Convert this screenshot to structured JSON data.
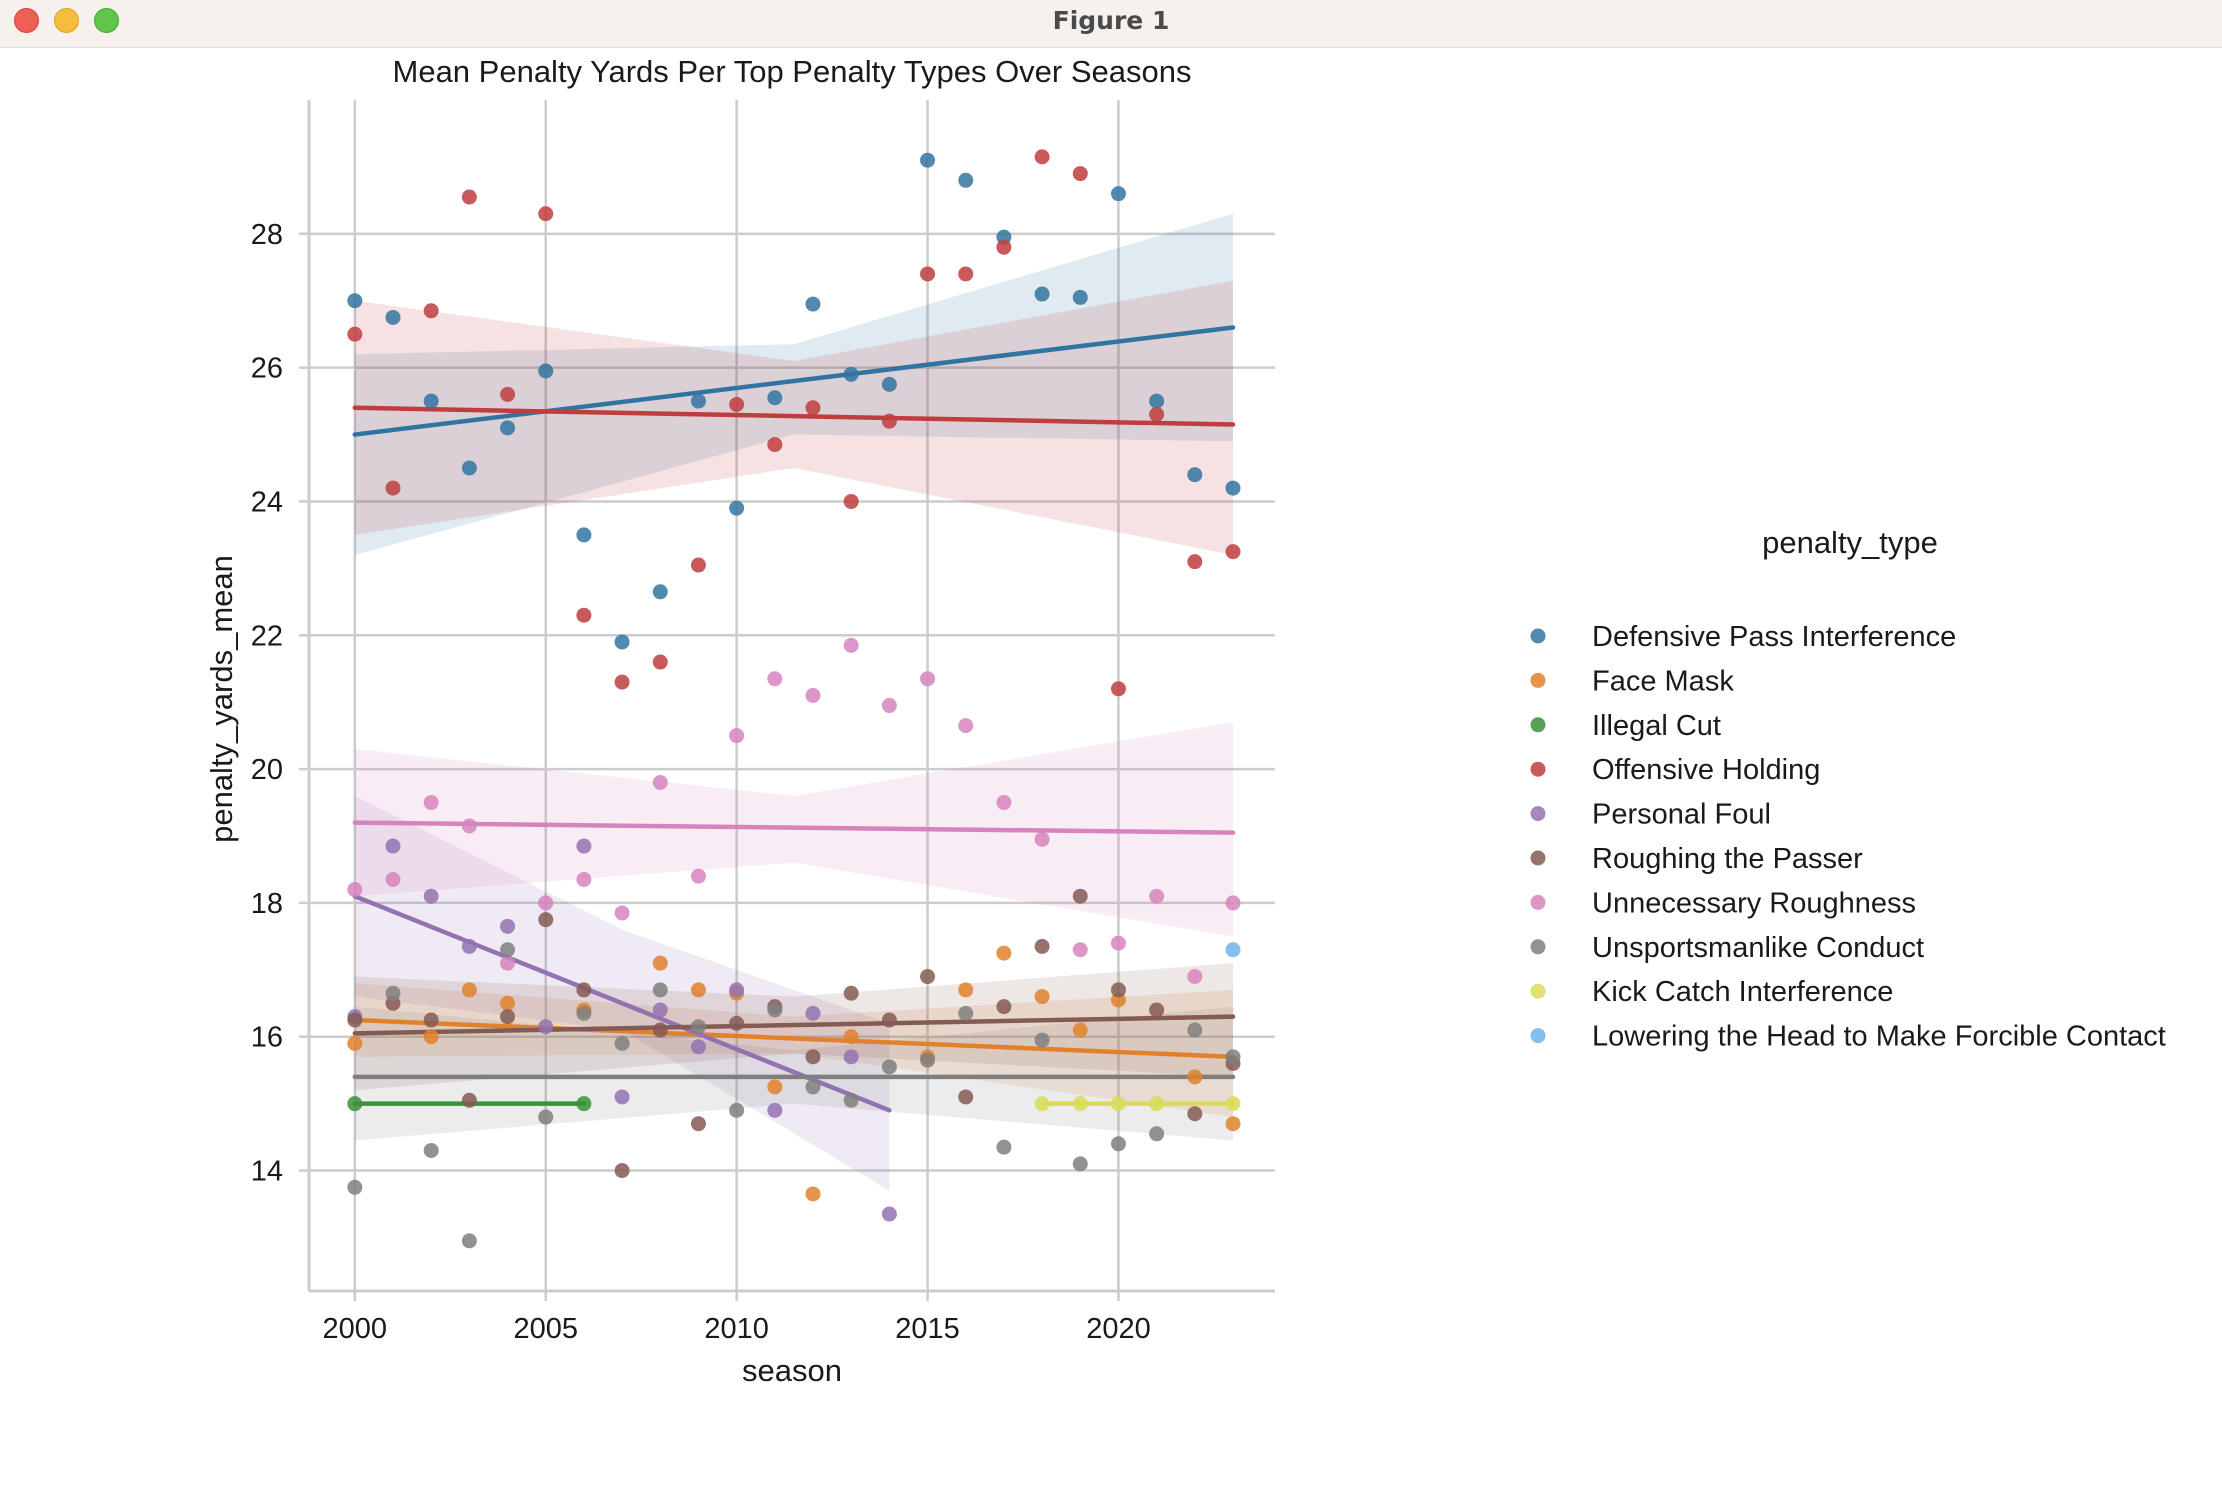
{
  "window": {
    "title": "Figure 1",
    "buttons": [
      "close",
      "minimize",
      "maximize"
    ]
  },
  "chart_data": {
    "type": "scatter",
    "title": "Mean Penalty Yards Per Top Penalty Types Over Seasons",
    "xlabel": "season",
    "ylabel": "penalty_yards_mean",
    "xlim": [
      1998.8,
      2024.1
    ],
    "ylim": [
      12.2,
      30.0
    ],
    "xticks": [
      2000,
      2005,
      2010,
      2015,
      2020
    ],
    "yticks": [
      14,
      16,
      18,
      20,
      22,
      24,
      26,
      28
    ],
    "grid": true,
    "legend_title": "penalty_type",
    "legend_placement": "center-right, outside plot",
    "series": [
      {
        "name": "Defensive Pass Interference",
        "color": "#3274a1",
        "points": [
          [
            2000,
            27.0
          ],
          [
            2001,
            26.75
          ],
          [
            2002,
            25.5
          ],
          [
            2003,
            24.5
          ],
          [
            2004,
            25.1
          ],
          [
            2005,
            25.95
          ],
          [
            2006,
            23.5
          ],
          [
            2007,
            21.9
          ],
          [
            2008,
            22.65
          ],
          [
            2009,
            25.5
          ],
          [
            2010,
            23.9
          ],
          [
            2011,
            25.55
          ],
          [
            2012,
            26.95
          ],
          [
            2013,
            25.9
          ],
          [
            2014,
            25.75
          ],
          [
            2015,
            29.1
          ],
          [
            2016,
            28.8
          ],
          [
            2017,
            27.95
          ],
          [
            2018,
            27.1
          ],
          [
            2019,
            27.05
          ],
          [
            2020,
            28.6
          ],
          [
            2021,
            25.5
          ],
          [
            2022,
            24.4
          ],
          [
            2023,
            24.2
          ]
        ],
        "fit": {
          "start": [
            2000,
            25.0
          ],
          "end": [
            2023,
            26.6
          ]
        },
        "ci": {
          "x": [
            2000,
            2011.5,
            2023
          ],
          "lower": [
            23.2,
            25.0,
            24.9
          ],
          "upper": [
            26.2,
            26.35,
            28.3
          ]
        }
      },
      {
        "name": "Face Mask",
        "color": "#e1812c",
        "points": [
          [
            2000,
            15.9
          ],
          [
            2002,
            16.0
          ],
          [
            2003,
            16.7
          ],
          [
            2004,
            16.5
          ],
          [
            2006,
            16.4
          ],
          [
            2008,
            17.1
          ],
          [
            2009,
            16.7
          ],
          [
            2010,
            16.65
          ],
          [
            2011,
            15.25
          ],
          [
            2012,
            13.65
          ],
          [
            2013,
            16.0
          ],
          [
            2015,
            15.7
          ],
          [
            2016,
            16.7
          ],
          [
            2017,
            17.25
          ],
          [
            2018,
            16.6
          ],
          [
            2019,
            16.1
          ],
          [
            2020,
            16.55
          ],
          [
            2022,
            15.4
          ],
          [
            2023,
            14.7
          ]
        ],
        "fit": {
          "start": [
            2000,
            16.25
          ],
          "end": [
            2023,
            15.7
          ]
        },
        "ci": {
          "x": [
            2000,
            2011.5,
            2023
          ],
          "lower": [
            15.7,
            15.75,
            14.8
          ],
          "upper": [
            16.8,
            16.3,
            16.7
          ]
        }
      },
      {
        "name": "Illegal Cut",
        "color": "#3a923a",
        "points": [
          [
            2000,
            15.0
          ],
          [
            2006,
            15.0
          ]
        ],
        "fit": {
          "start": [
            2000,
            15.0
          ],
          "end": [
            2006,
            15.0
          ]
        }
      },
      {
        "name": "Offensive Holding",
        "color": "#c03d3e",
        "points": [
          [
            2000,
            26.5
          ],
          [
            2001,
            24.2
          ],
          [
            2002,
            26.85
          ],
          [
            2003,
            28.55
          ],
          [
            2004,
            25.6
          ],
          [
            2005,
            28.3
          ],
          [
            2006,
            22.3
          ],
          [
            2007,
            21.3
          ],
          [
            2008,
            21.6
          ],
          [
            2009,
            23.05
          ],
          [
            2010,
            25.45
          ],
          [
            2011,
            24.85
          ],
          [
            2012,
            25.4
          ],
          [
            2013,
            24.0
          ],
          [
            2014,
            25.2
          ],
          [
            2015,
            27.4
          ],
          [
            2016,
            27.4
          ],
          [
            2017,
            27.8
          ],
          [
            2018,
            29.15
          ],
          [
            2019,
            28.9
          ],
          [
            2020,
            21.2
          ],
          [
            2021,
            25.3
          ],
          [
            2022,
            23.1
          ],
          [
            2023,
            23.25
          ]
        ],
        "fit": {
          "start": [
            2000,
            25.4
          ],
          "end": [
            2023,
            25.15
          ]
        },
        "ci": {
          "x": [
            2000,
            2011.5,
            2023
          ],
          "lower": [
            23.5,
            24.5,
            23.2
          ],
          "upper": [
            27.0,
            26.1,
            27.3
          ]
        }
      },
      {
        "name": "Personal Foul",
        "color": "#9372b2",
        "points": [
          [
            2000,
            16.3
          ],
          [
            2001,
            18.85
          ],
          [
            2002,
            18.1
          ],
          [
            2003,
            17.35
          ],
          [
            2004,
            17.65
          ],
          [
            2005,
            16.15
          ],
          [
            2006,
            18.85
          ],
          [
            2007,
            15.1
          ],
          [
            2008,
            16.4
          ],
          [
            2009,
            15.85
          ],
          [
            2010,
            16.7
          ],
          [
            2011,
            14.9
          ],
          [
            2012,
            16.35
          ],
          [
            2013,
            15.7
          ],
          [
            2014,
            13.35
          ]
        ],
        "fit": {
          "start": [
            2000,
            18.1
          ],
          "end": [
            2014,
            14.9
          ]
        },
        "ci": {
          "x": [
            2000,
            2007,
            2014
          ],
          "lower": [
            16.6,
            16.1,
            13.7
          ],
          "upper": [
            19.6,
            17.6,
            16.2
          ]
        }
      },
      {
        "name": "Roughing the Passer",
        "color": "#845b53",
        "points": [
          [
            2000,
            16.25
          ],
          [
            2001,
            16.5
          ],
          [
            2002,
            16.25
          ],
          [
            2003,
            15.05
          ],
          [
            2004,
            16.3
          ],
          [
            2005,
            17.75
          ],
          [
            2006,
            16.7
          ],
          [
            2007,
            14.0
          ],
          [
            2008,
            16.1
          ],
          [
            2009,
            14.7
          ],
          [
            2010,
            16.2
          ],
          [
            2011,
            16.45
          ],
          [
            2012,
            15.7
          ],
          [
            2013,
            16.65
          ],
          [
            2014,
            16.25
          ],
          [
            2015,
            16.9
          ],
          [
            2016,
            15.1
          ],
          [
            2017,
            16.45
          ],
          [
            2018,
            17.35
          ],
          [
            2019,
            18.1
          ],
          [
            2020,
            16.7
          ],
          [
            2021,
            16.4
          ],
          [
            2022,
            14.85
          ],
          [
            2023,
            15.6
          ]
        ],
        "fit": {
          "start": [
            2000,
            16.05
          ],
          "end": [
            2023,
            16.3
          ]
        },
        "ci": {
          "x": [
            2000,
            2011.5,
            2023
          ],
          "lower": [
            15.2,
            15.75,
            15.4
          ],
          "upper": [
            16.9,
            16.6,
            17.1
          ]
        }
      },
      {
        "name": "Unnecessary Roughness",
        "color": "#d684bd",
        "points": [
          [
            2000,
            18.2
          ],
          [
            2001,
            18.35
          ],
          [
            2002,
            19.5
          ],
          [
            2003,
            19.15
          ],
          [
            2004,
            17.1
          ],
          [
            2005,
            18.0
          ],
          [
            2006,
            18.35
          ],
          [
            2007,
            17.85
          ],
          [
            2008,
            19.8
          ],
          [
            2009,
            18.4
          ],
          [
            2010,
            20.5
          ],
          [
            2011,
            21.35
          ],
          [
            2012,
            21.1
          ],
          [
            2013,
            21.85
          ],
          [
            2014,
            20.95
          ],
          [
            2015,
            21.35
          ],
          [
            2016,
            20.65
          ],
          [
            2017,
            19.5
          ],
          [
            2018,
            18.95
          ],
          [
            2019,
            17.3
          ],
          [
            2020,
            17.4
          ],
          [
            2021,
            18.1
          ],
          [
            2022,
            16.9
          ],
          [
            2023,
            18.0
          ]
        ],
        "fit": {
          "start": [
            2000,
            19.2
          ],
          "end": [
            2023,
            19.05
          ]
        },
        "ci": {
          "x": [
            2000,
            2011.5,
            2023
          ],
          "lower": [
            18.1,
            18.6,
            17.5
          ],
          "upper": [
            20.3,
            19.6,
            20.7
          ]
        }
      },
      {
        "name": "Unsportsmanlike Conduct",
        "color": "#7f7f7f",
        "points": [
          [
            2000,
            13.75
          ],
          [
            2001,
            16.65
          ],
          [
            2002,
            14.3
          ],
          [
            2003,
            12.95
          ],
          [
            2004,
            17.3
          ],
          [
            2005,
            14.8
          ],
          [
            2006,
            16.35
          ],
          [
            2007,
            15.9
          ],
          [
            2008,
            16.7
          ],
          [
            2009,
            16.15
          ],
          [
            2010,
            14.9
          ],
          [
            2011,
            16.4
          ],
          [
            2012,
            15.25
          ],
          [
            2013,
            15.05
          ],
          [
            2014,
            15.55
          ],
          [
            2015,
            15.65
          ],
          [
            2016,
            16.35
          ],
          [
            2017,
            14.35
          ],
          [
            2018,
            15.95
          ],
          [
            2019,
            14.1
          ],
          [
            2020,
            14.4
          ],
          [
            2021,
            14.55
          ],
          [
            2022,
            16.1
          ],
          [
            2023,
            15.7
          ]
        ],
        "fit": {
          "start": [
            2000,
            15.4
          ],
          "end": [
            2023,
            15.4
          ]
        },
        "ci": {
          "x": [
            2000,
            2011.5,
            2023
          ],
          "lower": [
            14.45,
            15.0,
            14.45
          ],
          "upper": [
            16.45,
            15.8,
            16.45
          ]
        }
      },
      {
        "name": "Kick Catch Interference",
        "color": "#dbdb5a",
        "points": [
          [
            2018,
            15.0
          ],
          [
            2019,
            15.0
          ],
          [
            2020,
            15.0
          ],
          [
            2021,
            15.0
          ],
          [
            2023,
            15.0
          ]
        ],
        "fit": {
          "start": [
            2018,
            15.0
          ],
          "end": [
            2023,
            15.0
          ]
        }
      },
      {
        "name": "Lowering the Head to Make Forcible Contact",
        "color": "#6fb3e9",
        "points": [
          [
            2023,
            17.3
          ]
        ]
      }
    ]
  }
}
